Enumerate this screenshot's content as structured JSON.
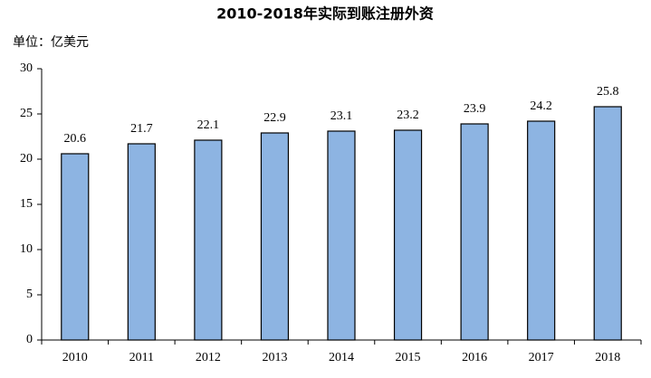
{
  "chart_data": {
    "type": "bar",
    "title": "2010-2018年实际到账注册外资",
    "unit_label": "单位：亿美元",
    "categories": [
      "2010",
      "2011",
      "2012",
      "2013",
      "2014",
      "2015",
      "2016",
      "2017",
      "2018"
    ],
    "values": [
      20.6,
      21.7,
      22.1,
      22.9,
      23.1,
      23.2,
      23.9,
      24.2,
      25.8
    ],
    "color": "#8db4e2",
    "ylim": [
      0,
      30
    ],
    "yticks": [
      0,
      5,
      10,
      15,
      20,
      25,
      30
    ],
    "grid": false
  }
}
